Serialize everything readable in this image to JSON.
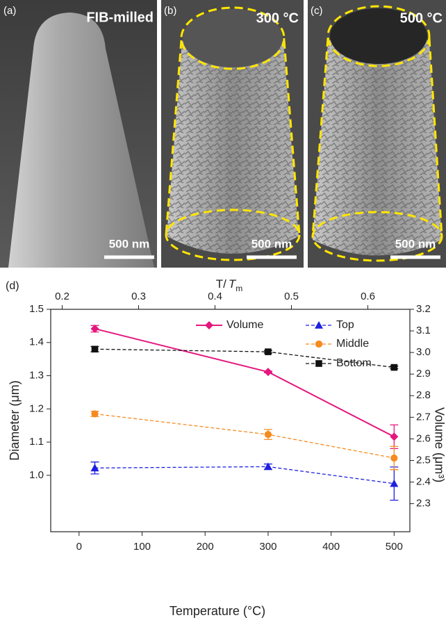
{
  "panels": [
    {
      "label": "(a)",
      "caption": "FIB-milled",
      "scale": "500 nm"
    },
    {
      "label": "(b)",
      "caption": "300 °C",
      "scale": "500 nm"
    },
    {
      "label": "(c)",
      "caption": "500 °C",
      "scale": "500 nm"
    }
  ],
  "chart_data": {
    "type": "line",
    "panel_label": "(d)",
    "xlabel": "Temperature (°C)",
    "ylabel": "Diameter (μm)",
    "y2label": "Volume (μm³)",
    "x2label": [
      "T/",
      "T",
      "m"
    ],
    "x": [
      25,
      300,
      500
    ],
    "xlim": [
      -45,
      525
    ],
    "xticks": [
      0,
      100,
      200,
      300,
      400,
      500
    ],
    "x2lim": [
      0.185,
      0.655
    ],
    "x2ticks": [
      0.2,
      0.3,
      0.4,
      0.5,
      0.6
    ],
    "ylim": [
      0.83,
      1.5
    ],
    "yticks": [
      1.0,
      1.1,
      1.2,
      1.3,
      1.4,
      1.5
    ],
    "y2lim": [
      2.17,
      3.2
    ],
    "y2ticks": [
      2.3,
      2.4,
      2.5,
      2.6,
      2.7,
      2.8,
      2.9,
      3.0,
      3.1,
      3.2
    ],
    "series": [
      {
        "name": "Volume",
        "color": "#e5177e",
        "marker": "diamond",
        "dashed": false,
        "axis": "y2",
        "values": [
          3.11,
          2.91,
          2.61
        ],
        "errors": [
          0.015,
          0.004,
          0.055
        ]
      },
      {
        "name": "Top",
        "color": "#1f1fe0",
        "marker": "triangle",
        "dashed": true,
        "values": [
          1.022,
          1.026,
          0.975
        ],
        "errors": [
          0.018,
          0.008,
          0.05
        ]
      },
      {
        "name": "Middle",
        "color": "#f58a1f",
        "marker": "circle",
        "dashed": true,
        "values": [
          1.185,
          1.123,
          1.052
        ],
        "errors": [
          0.008,
          0.015,
          0.035
        ]
      },
      {
        "name": "Bottom",
        "color": "#111111",
        "marker": "square",
        "dashed": true,
        "values": [
          1.38,
          1.372,
          1.325
        ],
        "errors": [
          0.008,
          0.004,
          0.004
        ]
      }
    ]
  }
}
